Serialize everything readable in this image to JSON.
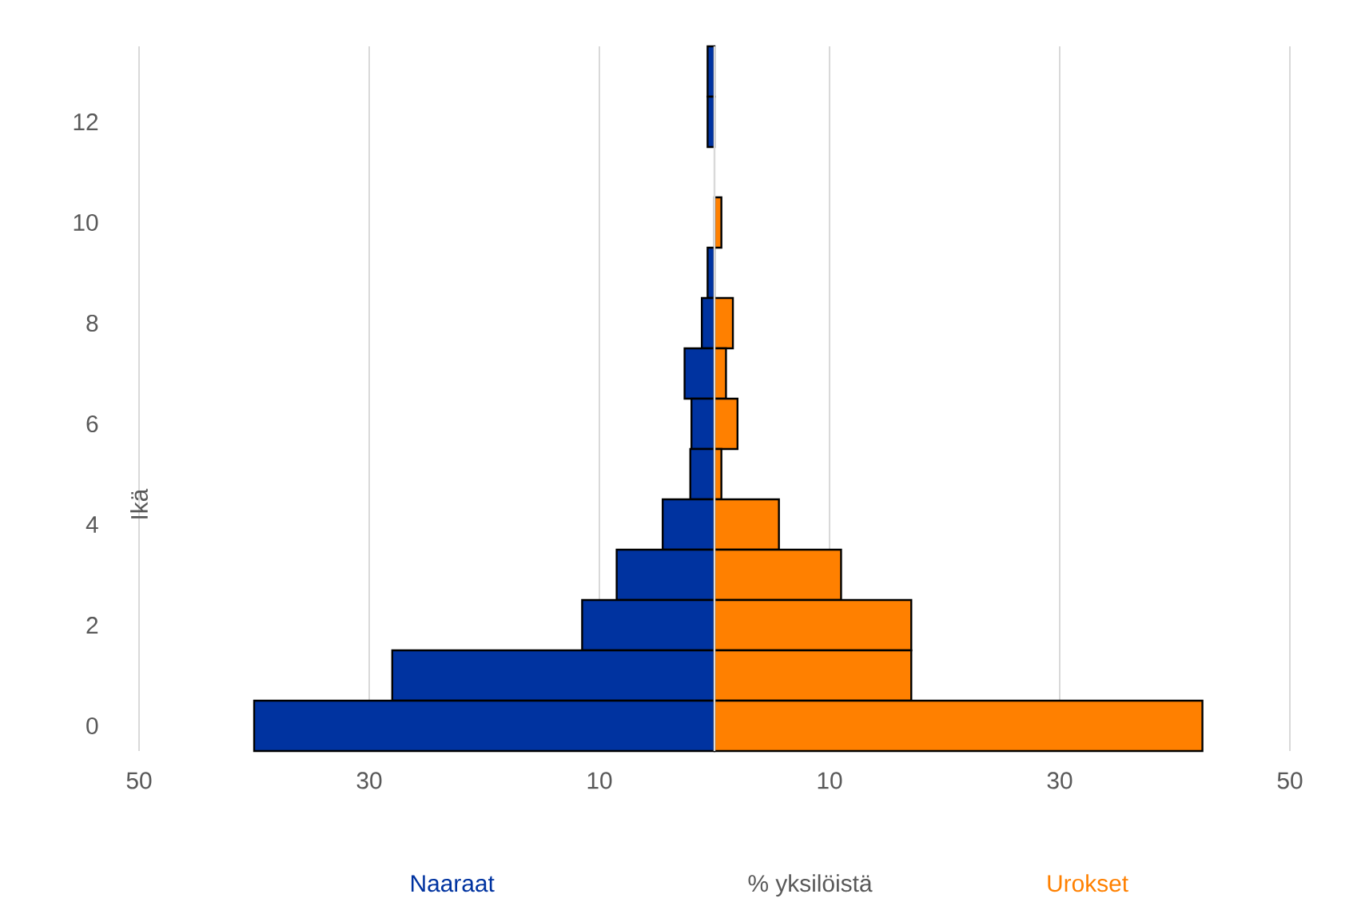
{
  "chart_data": {
    "type": "bar",
    "orientation": "horizontal",
    "xlabel": "% yksilöistä",
    "ylabel": "Ikä",
    "categories": [
      null,
      "12",
      null,
      "10",
      null,
      "8",
      null,
      "6",
      null,
      "4",
      null,
      "2",
      null,
      "0"
    ],
    "stacked": true,
    "series": [
      {
        "name": "Naaraat",
        "color": "#0033a0",
        "values": [
          -0.6,
          -0.6,
          null,
          null,
          -0.6,
          -1.1,
          -2.6,
          -2,
          -2.1,
          -4.5,
          -8.5,
          -11.5,
          -28,
          -40
        ]
      },
      {
        "name": "Urokset",
        "color": "#ff8000",
        "values": [
          null,
          null,
          null,
          0.6,
          null,
          1.6,
          1,
          2,
          0.6,
          5.6,
          11,
          17.1,
          17.1,
          42.4
        ]
      }
    ],
    "ref_lines": [
      {
        "axis": "x",
        "value": 0,
        "color": "#d9d9d9"
      }
    ],
    "xlim": [
      -50,
      50
    ],
    "xticks": [
      {
        "value": -50,
        "label": "50"
      },
      {
        "value": -30,
        "label": "30"
      },
      {
        "value": -10,
        "label": "10"
      },
      {
        "value": 10,
        "label": "10"
      },
      {
        "value": 30,
        "label": "30"
      },
      {
        "value": 50,
        "label": "50"
      }
    ],
    "grid": "x"
  }
}
